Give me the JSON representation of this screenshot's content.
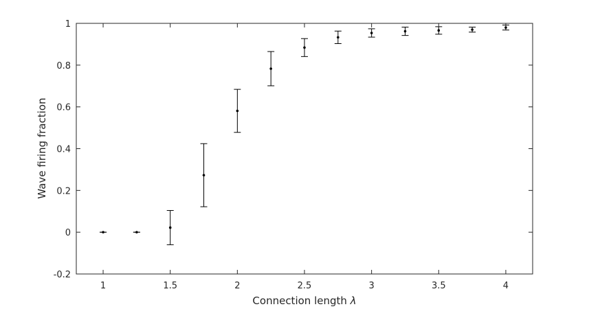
{
  "chart_data": {
    "type": "scatter",
    "title": "",
    "xlabel": "Connection length",
    "xlabel_symbol": "λ",
    "ylabel": "Wave firing fraction",
    "xlim": [
      0.8,
      4.2
    ],
    "ylim": [
      -0.2,
      1.0
    ],
    "xticks": [
      1,
      1.5,
      2,
      2.5,
      3,
      3.5,
      4
    ],
    "xtick_labels": [
      "1",
      "1.5",
      "2",
      "2.5",
      "3",
      "3.5",
      "4"
    ],
    "yticks": [
      -0.2,
      0,
      0.2,
      0.4,
      0.6,
      0.8,
      1
    ],
    "ytick_labels": [
      "-0.2",
      "0",
      "0.2",
      "0.4",
      "0.6",
      "0.8",
      "1"
    ],
    "grid": false,
    "series": [
      {
        "marker": "point",
        "error_bars": true,
        "points": [
          {
            "x": 1.0,
            "y": 0.0,
            "lower": 0.0,
            "upper": 0.0
          },
          {
            "x": 1.25,
            "y": 0.0,
            "lower": 0.0,
            "upper": 0.0
          },
          {
            "x": 1.5,
            "y": 0.022,
            "lower": -0.06,
            "upper": 0.104
          },
          {
            "x": 1.75,
            "y": 0.273,
            "lower": 0.122,
            "upper": 0.424
          },
          {
            "x": 2.0,
            "y": 0.581,
            "lower": 0.478,
            "upper": 0.684
          },
          {
            "x": 2.25,
            "y": 0.783,
            "lower": 0.701,
            "upper": 0.865
          },
          {
            "x": 2.5,
            "y": 0.884,
            "lower": 0.841,
            "upper": 0.927
          },
          {
            "x": 2.75,
            "y": 0.933,
            "lower": 0.903,
            "upper": 0.963
          },
          {
            "x": 3.0,
            "y": 0.954,
            "lower": 0.934,
            "upper": 0.974
          },
          {
            "x": 3.25,
            "y": 0.962,
            "lower": 0.942,
            "upper": 0.982
          },
          {
            "x": 3.5,
            "y": 0.966,
            "lower": 0.948,
            "upper": 0.984
          },
          {
            "x": 3.75,
            "y": 0.97,
            "lower": 0.958,
            "upper": 0.982
          },
          {
            "x": 4.0,
            "y": 0.98,
            "lower": 0.968,
            "upper": 0.992
          }
        ]
      }
    ]
  }
}
